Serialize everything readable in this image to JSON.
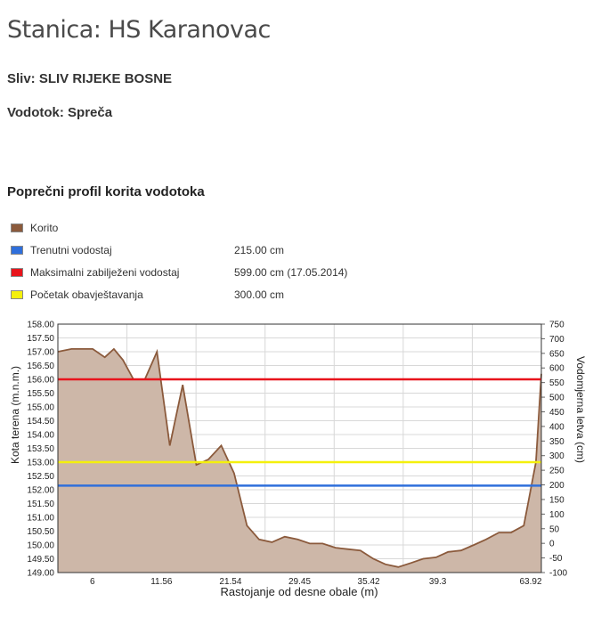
{
  "header": {
    "title": "Stanica: HS Karanovac",
    "sliv": "Sliv: SLIV RIJEKE BOSNE",
    "vodotok": "Vodotok: Spreča"
  },
  "section_title": "Poprečni profil korita vodotoka",
  "legend": [
    {
      "label": "Korito",
      "value": "",
      "color": "#8b5a3c"
    },
    {
      "label": "Trenutni vodostaj",
      "value": "215.00 cm",
      "color": "#2f6fdb"
    },
    {
      "label": "Maksimalni zabilježeni vodostaj",
      "value": "599.00 cm (17.05.2014)",
      "color": "#e8141c"
    },
    {
      "label": "Početak obavještavanja",
      "value": "300.00 cm",
      "color": "#f4f00c"
    }
  ],
  "chart_data": {
    "type": "area",
    "xlabel": "Rastojanje od desne obale (m)",
    "ylabel": "Kota terena (m.n.m.)",
    "y2label": "Vodomjerna letva (cm)",
    "xlim": [
      0,
      63.92
    ],
    "ylim": [
      149,
      158
    ],
    "y2lim": [
      -100,
      750
    ],
    "x_ticks": [
      "6",
      "11.56",
      "21.54",
      "29.45",
      "35.42",
      "39.3",
      "63.92"
    ],
    "y_ticks": [
      "149.00",
      "149.50",
      "150.00",
      "150.50",
      "151.00",
      "151.50",
      "152.00",
      "152.50",
      "153.00",
      "153.50",
      "154.00",
      "154.50",
      "155.00",
      "155.50",
      "156.00",
      "156.50",
      "157.00",
      "157.50",
      "158.00"
    ],
    "y2_ticks": [
      "-100",
      "-50",
      "0",
      "50",
      "100",
      "150",
      "200",
      "250",
      "300",
      "350",
      "400",
      "450",
      "500",
      "550",
      "600",
      "650",
      "700",
      "750"
    ],
    "series": [
      {
        "name": "Korito",
        "color": "#8b5a3c",
        "x": [
          0,
          1.8,
          4.6,
          6.2,
          7.4,
          8.6,
          10.0,
          11.5,
          13.1,
          14.8,
          16.5,
          18.3,
          19.9,
          21.6,
          23.3,
          25.0,
          26.6,
          28.3,
          30.0,
          31.7,
          33.3,
          35.0,
          36.7,
          38.3,
          40.0,
          41.7,
          43.3,
          45.0,
          46.7,
          48.3,
          50.0,
          51.6,
          53.3,
          55.0,
          56.6,
          58.3,
          59.9,
          61.6,
          63.2,
          63.92
        ],
        "y": [
          157.0,
          157.1,
          157.1,
          156.8,
          157.1,
          156.7,
          156.0,
          156.0,
          157.0,
          153.6,
          155.8,
          152.9,
          153.1,
          153.6,
          152.6,
          150.7,
          150.2,
          150.1,
          150.3,
          150.2,
          150.05,
          150.05,
          149.9,
          149.85,
          149.8,
          149.5,
          149.3,
          149.2,
          149.35,
          149.5,
          149.55,
          149.75,
          149.8,
          150.0,
          150.2,
          150.45,
          150.45,
          150.7,
          153.0,
          156.2
        ]
      }
    ],
    "reference_lines": [
      {
        "name": "Maksimalni zabilježeni vodostaj",
        "y": 156.0,
        "color": "#e8141c"
      },
      {
        "name": "Početak obavještavanja",
        "y": 153.0,
        "color": "#f4f00c"
      },
      {
        "name": "Trenutni vodostaj",
        "y": 152.15,
        "color": "#2f6fdb"
      }
    ],
    "fill_color": "#cdb7a8",
    "grid": true
  }
}
